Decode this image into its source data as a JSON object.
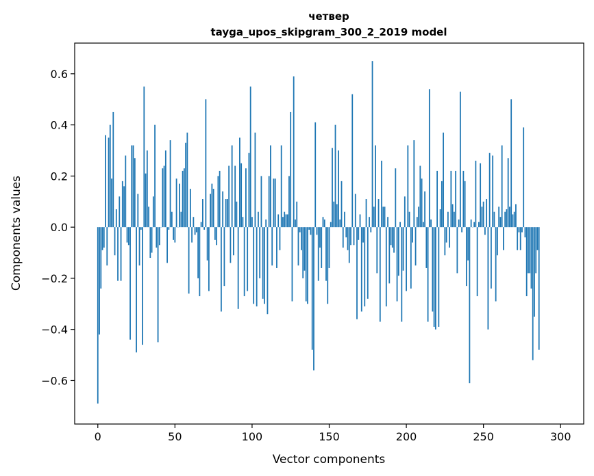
{
  "chart_data": {
    "type": "bar",
    "title": "четвер",
    "subtitle": "tayga_upos_skipgram_300_2_2019 model",
    "xlabel": "Vector components",
    "ylabel": "Components values",
    "xlim": [
      -15,
      315
    ],
    "ylim": [
      -0.77,
      0.72
    ],
    "xticks": [
      0,
      50,
      100,
      150,
      200,
      250,
      300
    ],
    "xtick_labels": [
      "0",
      "50",
      "100",
      "150",
      "200",
      "250",
      "300"
    ],
    "yticks": [
      -0.6,
      -0.4,
      -0.2,
      0.0,
      0.2,
      0.4,
      0.6
    ],
    "ytick_labels": [
      "−0.6",
      "−0.4",
      "−0.2",
      "0.0",
      "0.2",
      "0.4",
      "0.6"
    ],
    "bar_color": "#1f77b4",
    "x_start": 0,
    "values": [
      -0.69,
      -0.42,
      -0.24,
      -0.09,
      -0.08,
      0.36,
      -0.15,
      0.35,
      0.4,
      0.19,
      0.45,
      -0.11,
      0.07,
      -0.21,
      0.12,
      -0.21,
      0.18,
      0.16,
      0.28,
      -0.06,
      -0.07,
      -0.44,
      0.32,
      0.32,
      0.27,
      -0.49,
      0.13,
      -0.15,
      -0.01,
      -0.46,
      0.55,
      0.21,
      0.3,
      0.08,
      -0.12,
      -0.1,
      0.12,
      0.4,
      -0.08,
      -0.45,
      -0.07,
      0.0,
      0.23,
      0.24,
      0.3,
      -0.14,
      -0.01,
      0.34,
      0.06,
      -0.05,
      -0.06,
      0.19,
      0.0,
      0.17,
      0.06,
      0.22,
      0.23,
      0.33,
      0.37,
      -0.26,
      0.15,
      -0.06,
      0.04,
      -0.03,
      -0.02,
      -0.2,
      -0.27,
      0.02,
      0.11,
      -0.01,
      0.5,
      -0.13,
      -0.25,
      0.13,
      0.17,
      0.15,
      -0.05,
      -0.07,
      0.2,
      0.22,
      -0.33,
      0.14,
      -0.23,
      0.11,
      0.11,
      0.24,
      -0.14,
      0.32,
      -0.11,
      0.24,
      0.1,
      -0.32,
      0.35,
      0.25,
      0.04,
      -0.27,
      0.23,
      -0.25,
      0.29,
      0.55,
      0.04,
      -0.3,
      0.37,
      -0.31,
      0.06,
      -0.2,
      0.2,
      -0.28,
      -0.3,
      0.03,
      -0.34,
      0.2,
      0.32,
      -0.15,
      0.19,
      0.19,
      -0.16,
      0.05,
      -0.09,
      0.32,
      0.04,
      0.06,
      0.05,
      0.05,
      0.2,
      0.45,
      -0.29,
      0.59,
      0.03,
      0.1,
      -0.15,
      -0.02,
      -0.09,
      -0.2,
      -0.17,
      -0.29,
      -0.3,
      -0.01,
      -0.03,
      -0.48,
      -0.56,
      0.41,
      -0.03,
      -0.21,
      -0.08,
      -0.16,
      0.04,
      0.03,
      -0.21,
      -0.3,
      -0.16,
      0.02,
      0.31,
      0.1,
      0.4,
      0.09,
      0.3,
      0.03,
      0.18,
      -0.08,
      0.06,
      -0.04,
      -0.09,
      -0.14,
      -0.07,
      0.52,
      -0.07,
      0.13,
      -0.36,
      -0.05,
      0.05,
      -0.33,
      -0.06,
      -0.31,
      0.11,
      -0.28,
      0.04,
      -0.02,
      0.65,
      0.08,
      0.32,
      -0.18,
      0.11,
      -0.37,
      0.26,
      0.08,
      0.08,
      -0.31,
      0.04,
      -0.22,
      -0.07,
      -0.08,
      -0.1,
      0.23,
      -0.29,
      -0.19,
      0.02,
      -0.37,
      -0.17,
      0.12,
      -0.25,
      0.32,
      0.06,
      -0.24,
      -0.06,
      0.34,
      -0.15,
      0.04,
      0.08,
      0.24,
      0.19,
      0.02,
      0.14,
      -0.16,
      -0.37,
      0.54,
      0.03,
      -0.33,
      -0.39,
      -0.4,
      0.22,
      -0.39,
      0.07,
      0.18,
      0.37,
      -0.11,
      -0.06,
      0.06,
      -0.08,
      0.22,
      0.09,
      0.06,
      0.22,
      -0.18,
      0.03,
      0.53,
      -0.02,
      0.22,
      0.18,
      -0.23,
      -0.13,
      -0.61,
      0.03,
      0.0,
      0.02,
      0.26,
      -0.27,
      0.02,
      0.25,
      0.08,
      0.1,
      -0.03,
      0.11,
      -0.4,
      0.29,
      -0.24,
      0.28,
      0.06,
      -0.29,
      -0.11,
      0.08,
      0.04,
      0.32,
      -0.09,
      0.06,
      0.07,
      0.27,
      0.08,
      0.5,
      0.05,
      0.06,
      0.09,
      -0.09,
      -0.02,
      -0.09,
      -0.02,
      0.39,
      -0.04,
      -0.27,
      -0.18,
      -0.18,
      -0.24,
      -0.52,
      -0.35,
      -0.18,
      -0.09,
      -0.48
    ]
  }
}
